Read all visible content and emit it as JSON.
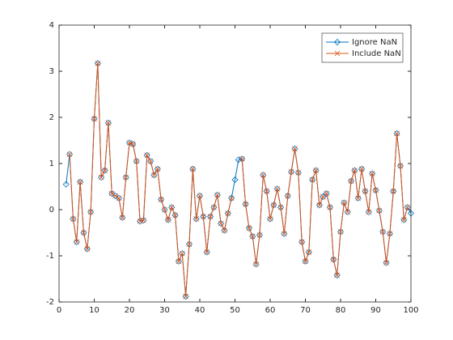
{
  "chart_data": {
    "type": "line",
    "x": [
      2,
      3,
      4,
      5,
      6,
      7,
      8,
      9,
      10,
      11,
      12,
      13,
      14,
      15,
      16,
      17,
      18,
      19,
      20,
      21,
      22,
      23,
      24,
      25,
      26,
      27,
      28,
      29,
      30,
      31,
      32,
      33,
      34,
      35,
      36,
      37,
      38,
      39,
      40,
      41,
      42,
      43,
      44,
      45,
      46,
      47,
      48,
      49,
      50,
      51,
      52,
      53,
      54,
      55,
      56,
      57,
      58,
      59,
      60,
      61,
      62,
      63,
      64,
      65,
      66,
      67,
      68,
      69,
      70,
      71,
      72,
      73,
      74,
      75,
      76,
      77,
      78,
      79,
      80,
      81,
      82,
      83,
      84,
      85,
      86,
      87,
      88,
      89,
      90,
      91,
      92,
      93,
      94,
      95,
      96,
      97,
      98,
      99,
      100
    ],
    "series": [
      {
        "name": "Ignore NaN",
        "color": "#0072bd",
        "marker": "diamond",
        "values": [
          0.55,
          1.2,
          -0.2,
          -0.7,
          0.6,
          -0.5,
          -0.85,
          -0.05,
          1.97,
          3.17,
          0.7,
          0.85,
          1.88,
          0.35,
          0.3,
          0.25,
          -0.17,
          0.7,
          1.45,
          1.42,
          1.05,
          -0.25,
          -0.23,
          1.18,
          1.05,
          0.75,
          0.88,
          0.22,
          0.0,
          -0.22,
          0.05,
          -0.12,
          -1.12,
          -0.95,
          -1.88,
          -0.75,
          0.88,
          -0.2,
          0.3,
          -0.15,
          -0.92,
          -0.15,
          0.05,
          0.32,
          -0.3,
          -0.45,
          -0.08,
          0.25,
          0.65,
          1.08,
          1.1,
          0.12,
          -0.4,
          -0.58,
          -1.18,
          -0.55,
          0.75,
          0.4,
          -0.2,
          0.1,
          0.45,
          0.05,
          -0.52,
          0.3,
          0.82,
          1.32,
          0.8,
          -0.7,
          -1.12,
          -0.92,
          0.65,
          0.85,
          0.1,
          0.28,
          0.35,
          0.05,
          -1.08,
          -1.42,
          -0.48,
          0.15,
          -0.05,
          0.62,
          0.85,
          0.25,
          0.88,
          0.4,
          -0.05,
          0.78,
          0.42,
          -0.02,
          -0.48,
          -1.15,
          -0.52,
          0.4,
          1.65,
          0.95,
          -0.22,
          0.05,
          -0.08
        ]
      },
      {
        "name": "Include NaN",
        "color": "#d95319",
        "marker": "x",
        "values": [
          null,
          1.2,
          -0.2,
          -0.7,
          0.6,
          -0.5,
          -0.85,
          -0.05,
          1.97,
          3.17,
          0.7,
          0.85,
          1.88,
          0.35,
          0.3,
          0.25,
          -0.17,
          0.7,
          1.45,
          1.42,
          1.05,
          -0.25,
          -0.23,
          1.18,
          1.05,
          0.75,
          0.88,
          0.22,
          0.0,
          -0.22,
          0.05,
          -0.12,
          -1.12,
          -0.95,
          -1.88,
          -0.75,
          0.88,
          -0.2,
          0.3,
          -0.15,
          -0.92,
          -0.15,
          0.05,
          0.32,
          -0.3,
          -0.45,
          -0.08,
          0.25,
          null,
          null,
          1.1,
          0.12,
          -0.4,
          -0.58,
          -1.18,
          -0.55,
          0.75,
          0.4,
          -0.2,
          0.1,
          0.45,
          0.05,
          -0.52,
          0.3,
          0.82,
          1.32,
          0.8,
          -0.7,
          -1.12,
          -0.92,
          0.65,
          0.85,
          0.1,
          0.28,
          0.35,
          0.05,
          -1.08,
          -1.42,
          -0.48,
          0.15,
          -0.05,
          0.62,
          0.85,
          0.25,
          0.88,
          0.4,
          -0.05,
          0.78,
          0.42,
          -0.02,
          -0.48,
          -1.15,
          -0.52,
          0.4,
          1.65,
          0.95,
          -0.22,
          0.05,
          null
        ]
      }
    ],
    "xlim": [
      0,
      100
    ],
    "xticks": [
      0,
      10,
      20,
      30,
      40,
      50,
      60,
      70,
      80,
      90,
      100
    ],
    "ylim": [
      -2,
      4
    ],
    "yticks": [
      -2,
      -1,
      0,
      1,
      2,
      3,
      4
    ],
    "legend": "northeast"
  }
}
